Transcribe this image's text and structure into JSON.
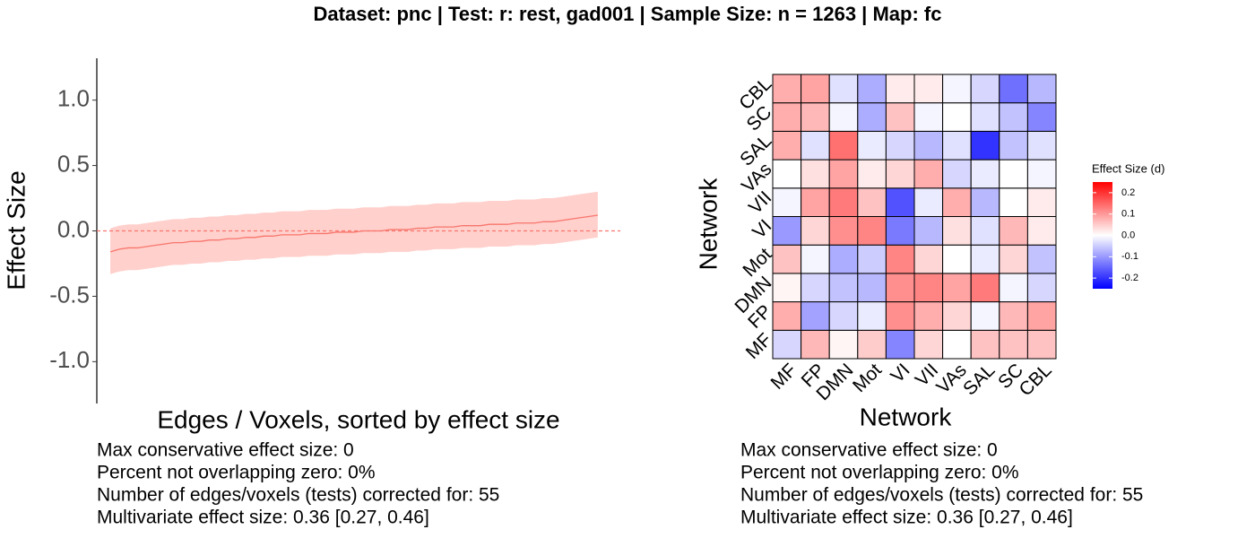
{
  "title": "Dataset: pnc   |  Test: r: rest, gad001   |   Sample Size: n = 1263   |  Map: fc",
  "chart_data": [
    {
      "type": "line",
      "xlabel": "Edges / Voxels, sorted by effect size",
      "ylabel": "Effect Size",
      "xlim": [
        -0.5,
        57.5
      ],
      "ylim": [
        -1.32,
        1.32
      ],
      "yticks": [
        {
          "value": -1,
          "label": "-1.0"
        },
        -0.5,
        {
          "value": 0,
          "label": "0.0"
        },
        0.5,
        {
          "value": 1,
          "label": "1.0"
        }
      ],
      "hline": 0,
      "x": [
        1,
        2,
        3,
        4,
        5,
        6,
        7,
        8,
        9,
        10,
        11,
        12,
        13,
        14,
        15,
        16,
        17,
        18,
        19,
        20,
        21,
        22,
        23,
        24,
        25,
        26,
        27,
        28,
        29,
        30,
        31,
        32,
        33,
        34,
        35,
        36,
        37,
        38,
        39,
        40,
        41,
        42,
        43,
        44,
        45,
        46,
        47,
        48,
        49,
        50,
        51,
        52,
        53,
        54,
        55
      ],
      "series": [
        {
          "color": "#f8766d",
          "band_color": "#ffd0cc",
          "values": [
            -0.16,
            -0.14,
            -0.13,
            -0.13,
            -0.12,
            -0.11,
            -0.1,
            -0.09,
            -0.09,
            -0.08,
            -0.08,
            -0.07,
            -0.07,
            -0.06,
            -0.06,
            -0.05,
            -0.05,
            -0.04,
            -0.04,
            -0.03,
            -0.03,
            -0.03,
            -0.02,
            -0.02,
            -0.02,
            -0.01,
            -0.01,
            -0.01,
            0.0,
            0.0,
            0.0,
            0.01,
            0.01,
            0.01,
            0.02,
            0.02,
            0.03,
            0.03,
            0.03,
            0.04,
            0.04,
            0.04,
            0.05,
            0.05,
            0.05,
            0.06,
            0.06,
            0.06,
            0.07,
            0.07,
            0.08,
            0.09,
            0.1,
            0.11,
            0.12
          ],
          "lower": [
            -0.33,
            -0.31,
            -0.3,
            -0.3,
            -0.29,
            -0.28,
            -0.27,
            -0.26,
            -0.26,
            -0.25,
            -0.25,
            -0.24,
            -0.24,
            -0.23,
            -0.23,
            -0.22,
            -0.22,
            -0.21,
            -0.21,
            -0.2,
            -0.2,
            -0.2,
            -0.19,
            -0.19,
            -0.19,
            -0.18,
            -0.18,
            -0.18,
            -0.17,
            -0.17,
            -0.17,
            -0.16,
            -0.16,
            -0.16,
            -0.15,
            -0.15,
            -0.14,
            -0.14,
            -0.14,
            -0.13,
            -0.13,
            -0.13,
            -0.12,
            -0.12,
            -0.12,
            -0.11,
            -0.11,
            -0.11,
            -0.1,
            -0.1,
            -0.09,
            -0.08,
            -0.07,
            -0.06,
            -0.05
          ],
          "upper": [
            0.02,
            0.04,
            0.05,
            0.05,
            0.06,
            0.07,
            0.08,
            0.09,
            0.09,
            0.1,
            0.1,
            0.11,
            0.11,
            0.12,
            0.12,
            0.13,
            0.13,
            0.14,
            0.14,
            0.15,
            0.15,
            0.15,
            0.16,
            0.16,
            0.16,
            0.17,
            0.17,
            0.17,
            0.18,
            0.18,
            0.18,
            0.19,
            0.19,
            0.19,
            0.2,
            0.2,
            0.21,
            0.21,
            0.21,
            0.22,
            0.22,
            0.22,
            0.23,
            0.23,
            0.23,
            0.24,
            0.24,
            0.24,
            0.25,
            0.25,
            0.26,
            0.27,
            0.28,
            0.29,
            0.3
          ]
        }
      ],
      "notes": [
        "Max conservative effect size: 0",
        "Percent not overlapping zero: 0%",
        "Number of edges/voxels (tests) corrected for: 55",
        "Multivariate effect size: 0.36 [0.27, 0.46]"
      ]
    },
    {
      "type": "heatmap",
      "xlabel": "Network",
      "ylabel": "Network",
      "x_categories": [
        "MF",
        "FP",
        "DMN",
        "Mot",
        "VI",
        "VII",
        "VAs",
        "SAL",
        "SC",
        "CBL"
      ],
      "y_categories": [
        "MF",
        "FP",
        "DMN",
        "Mot",
        "VI",
        "VII",
        "VAs",
        "SAL",
        "SC",
        "CBL"
      ],
      "values": [
        [
          -0.04,
          0.07,
          0.01,
          0.05,
          -0.12,
          0.04,
          0.0,
          0.06,
          0.06,
          0.06
        ],
        [
          0.08,
          -0.09,
          -0.04,
          -0.02,
          0.11,
          0.08,
          0.04,
          -0.01,
          0.07,
          0.09
        ],
        [
          0.01,
          -0.04,
          -0.06,
          -0.07,
          0.11,
          0.12,
          0.09,
          0.13,
          -0.01,
          -0.04
        ],
        [
          0.06,
          -0.01,
          -0.08,
          -0.05,
          0.12,
          0.04,
          0.0,
          -0.02,
          0.04,
          -0.06
        ],
        [
          -0.1,
          0.04,
          0.11,
          0.12,
          -0.13,
          -0.07,
          0.03,
          -0.03,
          0.07,
          0.02
        ],
        [
          -0.01,
          0.09,
          0.13,
          0.06,
          -0.17,
          -0.02,
          0.08,
          -0.07,
          0.0,
          0.02
        ],
        [
          0.0,
          0.03,
          0.09,
          0.02,
          0.04,
          0.08,
          -0.04,
          -0.02,
          0.0,
          -0.01
        ],
        [
          0.08,
          -0.03,
          0.14,
          -0.02,
          -0.04,
          -0.07,
          -0.03,
          -0.2,
          -0.06,
          -0.03
        ],
        [
          0.08,
          0.07,
          -0.01,
          -0.08,
          0.06,
          -0.01,
          0.0,
          -0.03,
          -0.06,
          -0.12
        ],
        [
          0.08,
          0.09,
          -0.03,
          -0.08,
          0.02,
          0.02,
          -0.01,
          -0.04,
          -0.14,
          -0.07
        ]
      ],
      "colorbar_title": "Effect Size (d)",
      "clim": [
        -0.25,
        0.25
      ],
      "cticks": [
        -0.2,
        -0.1,
        {
          "value": 0,
          "label": "0.0"
        },
        0.1,
        0.2
      ],
      "colormap": [
        "#0000ff",
        "#ffffff",
        "#ff0000"
      ],
      "notes": [
        "Max conservative effect size: 0",
        "Percent not overlapping zero: 0%",
        "Number of edges/voxels (tests) corrected for: 55",
        "Multivariate effect size: 0.36 [0.27, 0.46]"
      ]
    }
  ]
}
